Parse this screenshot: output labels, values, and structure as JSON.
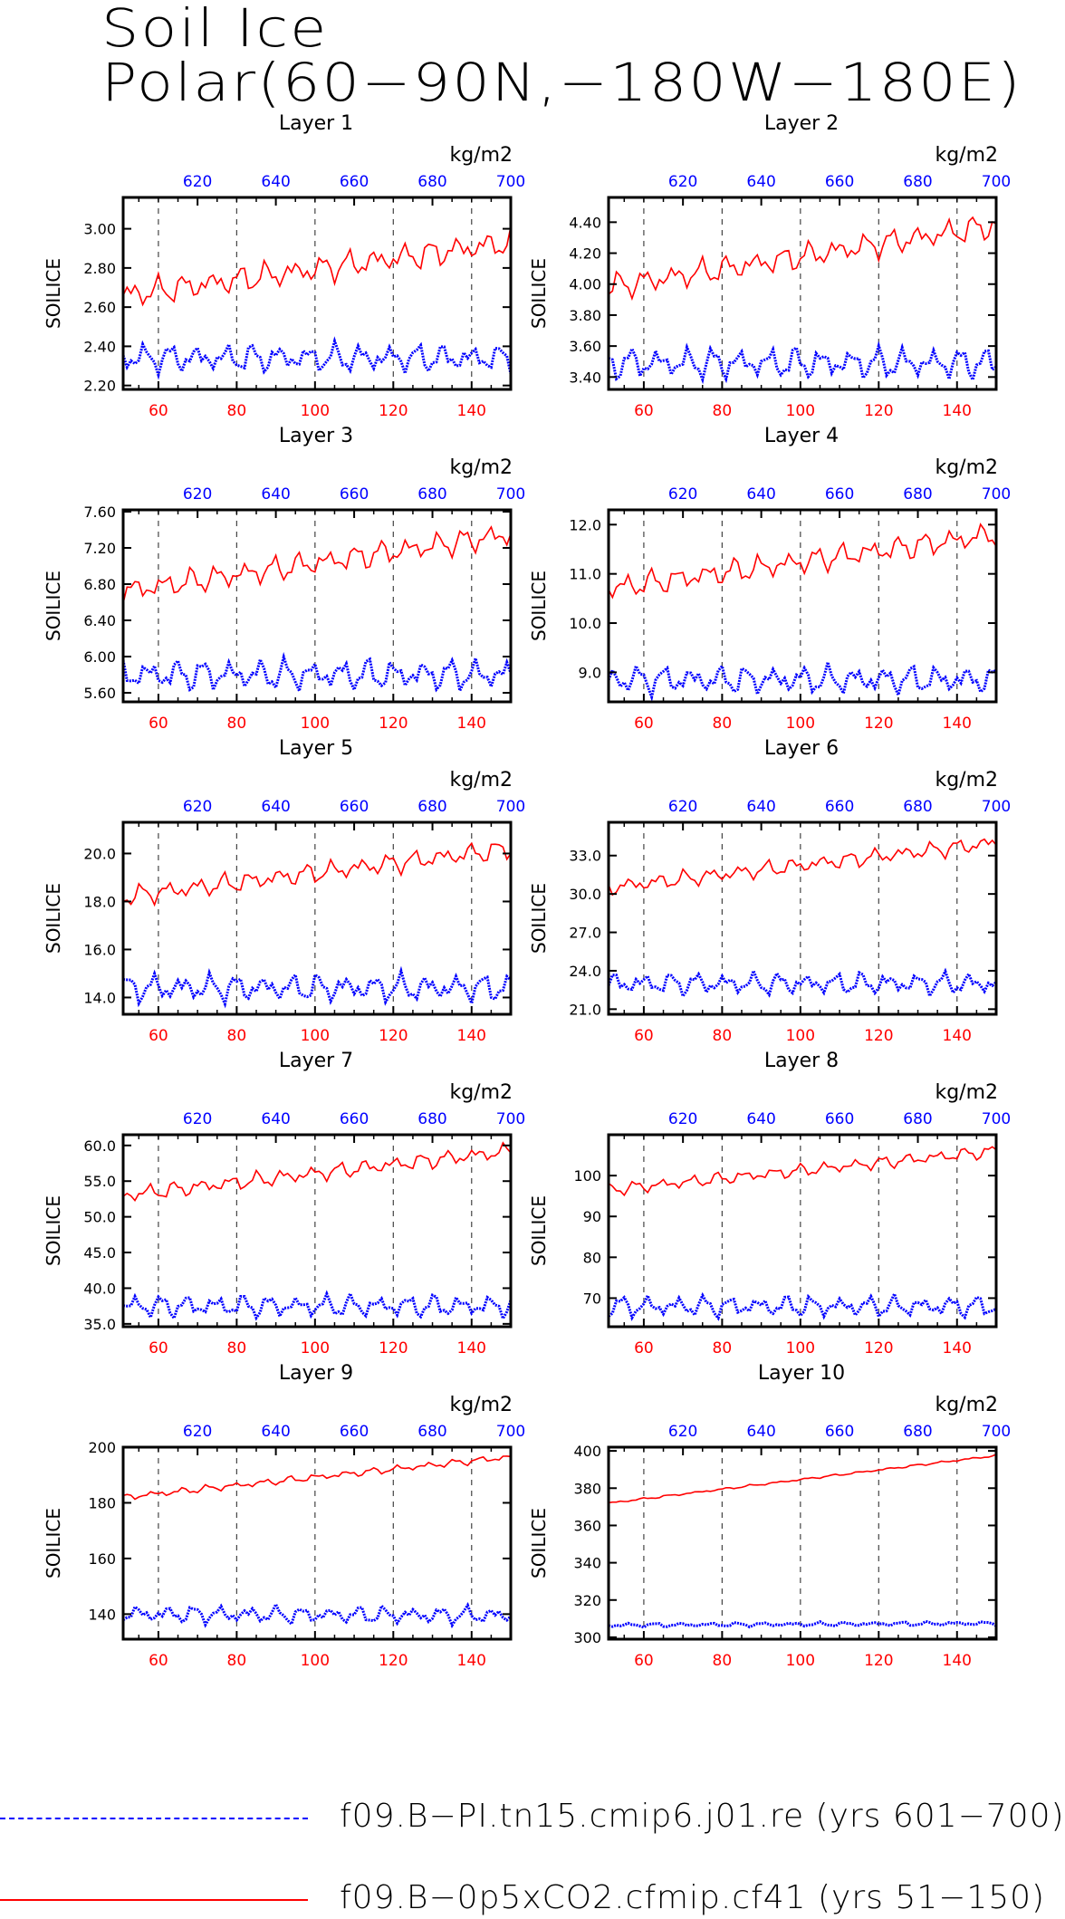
{
  "title": {
    "line1": "Soil Ice",
    "line2": "Polar(60−90N,−180W−180E)"
  },
  "colors": {
    "ctrl": "#0000ff",
    "exp": "#ff0000",
    "axis": "#000000",
    "grid": "#444444"
  },
  "legend": [
    {
      "label": "f09.B−PI.tn15.cmip6.j01.re (yrs 601−700)",
      "color": "#0000ff",
      "style": "dashed"
    },
    {
      "label": "f09.B−0p5xCO2.cfmip.cf41 (yrs 51−150)",
      "color": "#ff0000",
      "style": "solid"
    }
  ],
  "chart_data": [
    {
      "type": "line",
      "title": "Layer 1",
      "ylabel": "SOILICE",
      "top_axis_unit": "kg/m2",
      "x_bottom": {
        "ticks": [
          60,
          80,
          100,
          120,
          140
        ],
        "range": [
          51,
          150
        ],
        "color": "#ff0000"
      },
      "x_top": {
        "ticks": [
          620,
          640,
          660,
          680,
          700
        ],
        "range": [
          601,
          700
        ],
        "color": "#0000ff"
      },
      "ylim": [
        2.18,
        3.16
      ],
      "yticks": [
        2.2,
        2.4,
        2.6,
        2.8,
        3.0
      ],
      "ytick_labels": [
        "2.20",
        "2.40",
        "2.60",
        "2.80",
        "3.00"
      ],
      "series": [
        {
          "name": "f09.B−0p5xCO2.cfmip.cf41 (yrs 51−150)",
          "color": "#ff0000",
          "style": "solid",
          "start": 2.66,
          "end": 2.93,
          "amp": 0.05
        },
        {
          "name": "f09.B−PI.tn15.cmip6.j01.re (yrs 601−700)",
          "color": "#0000ff",
          "style": "dotted",
          "start": 2.34,
          "end": 2.34,
          "amp": 0.05
        }
      ]
    },
    {
      "type": "line",
      "title": "Layer 2",
      "ylabel": "SOILICE",
      "top_axis_unit": "kg/m2",
      "x_bottom": {
        "ticks": [
          60,
          80,
          100,
          120,
          140
        ],
        "range": [
          51,
          150
        ],
        "color": "#ff0000"
      },
      "x_top": {
        "ticks": [
          620,
          640,
          660,
          680,
          700
        ],
        "range": [
          601,
          700
        ],
        "color": "#0000ff"
      },
      "ylim": [
        3.32,
        4.56
      ],
      "yticks": [
        3.4,
        3.6,
        3.8,
        4.0,
        4.2,
        4.4
      ],
      "ytick_labels": [
        "3.40",
        "3.60",
        "3.80",
        "4.00",
        "4.20",
        "4.40"
      ],
      "series": [
        {
          "name": "f09.B−0p5xCO2.cfmip.cf41 (yrs 51−150)",
          "color": "#ff0000",
          "style": "solid",
          "start": 3.98,
          "end": 4.38,
          "amp": 0.06
        },
        {
          "name": "f09.B−PI.tn15.cmip6.j01.re (yrs 601−700)",
          "color": "#0000ff",
          "style": "dotted",
          "start": 3.49,
          "end": 3.49,
          "amp": 0.07
        }
      ]
    },
    {
      "type": "line",
      "title": "Layer 3",
      "ylabel": "SOILICE",
      "top_axis_unit": "kg/m2",
      "x_bottom": {
        "ticks": [
          60,
          80,
          100,
          120,
          140
        ],
        "range": [
          51,
          150
        ],
        "color": "#ff0000"
      },
      "x_top": {
        "ticks": [
          620,
          640,
          660,
          680,
          700
        ],
        "range": [
          601,
          700
        ],
        "color": "#0000ff"
      },
      "ylim": [
        5.5,
        7.62
      ],
      "yticks": [
        5.6,
        6.0,
        6.4,
        6.8,
        7.2,
        7.6
      ],
      "ytick_labels": [
        "5.60",
        "6.00",
        "6.40",
        "6.80",
        "7.20",
        "7.60"
      ],
      "series": [
        {
          "name": "f09.B−0p5xCO2.cfmip.cf41 (yrs 51−150)",
          "color": "#ff0000",
          "style": "solid",
          "start": 6.72,
          "end": 7.35,
          "amp": 0.1
        },
        {
          "name": "f09.B−PI.tn15.cmip6.j01.re (yrs 601−700)",
          "color": "#0000ff",
          "style": "dotted",
          "start": 5.8,
          "end": 5.8,
          "amp": 0.12
        }
      ]
    },
    {
      "type": "line",
      "title": "Layer 4",
      "ylabel": "SOILICE",
      "top_axis_unit": "kg/m2",
      "x_bottom": {
        "ticks": [
          60,
          80,
          100,
          120,
          140
        ],
        "range": [
          51,
          150
        ],
        "color": "#ff0000"
      },
      "x_top": {
        "ticks": [
          620,
          640,
          660,
          680,
          700
        ],
        "range": [
          601,
          700
        ],
        "color": "#0000ff"
      },
      "ylim": [
        8.4,
        12.3
      ],
      "yticks": [
        9.0,
        10.0,
        11.0,
        12.0
      ],
      "ytick_labels": [
        "9.0",
        "10.0",
        "11.0",
        "12.0"
      ],
      "series": [
        {
          "name": "f09.B−0p5xCO2.cfmip.cf41 (yrs 51−150)",
          "color": "#ff0000",
          "style": "solid",
          "start": 10.7,
          "end": 11.8,
          "amp": 0.18
        },
        {
          "name": "f09.B−PI.tn15.cmip6.j01.re (yrs 601−700)",
          "color": "#0000ff",
          "style": "dotted",
          "start": 8.85,
          "end": 8.85,
          "amp": 0.2
        }
      ]
    },
    {
      "type": "line",
      "title": "Layer 5",
      "ylabel": "SOILICE",
      "top_axis_unit": "kg/m2",
      "x_bottom": {
        "ticks": [
          60,
          80,
          100,
          120,
          140
        ],
        "range": [
          51,
          150
        ],
        "color": "#ff0000"
      },
      "x_top": {
        "ticks": [
          620,
          640,
          660,
          680,
          700
        ],
        "range": [
          601,
          700
        ],
        "color": "#0000ff"
      },
      "ylim": [
        13.3,
        21.3
      ],
      "yticks": [
        14.0,
        16.0,
        18.0,
        20.0
      ],
      "ytick_labels": [
        "14.0",
        "16.0",
        "18.0",
        "20.0"
      ],
      "series": [
        {
          "name": "f09.B−0p5xCO2.cfmip.cf41 (yrs 51−150)",
          "color": "#ff0000",
          "style": "solid",
          "start": 18.2,
          "end": 20.2,
          "amp": 0.3
        },
        {
          "name": "f09.B−PI.tn15.cmip6.j01.re (yrs 601−700)",
          "color": "#0000ff",
          "style": "dotted",
          "start": 14.4,
          "end": 14.4,
          "amp": 0.4
        }
      ]
    },
    {
      "type": "line",
      "title": "Layer 6",
      "ylabel": "SOILICE",
      "top_axis_unit": "kg/m2",
      "x_bottom": {
        "ticks": [
          60,
          80,
          100,
          120,
          140
        ],
        "range": [
          51,
          150
        ],
        "color": "#ff0000"
      },
      "x_top": {
        "ticks": [
          620,
          640,
          660,
          680,
          700
        ],
        "range": [
          601,
          700
        ],
        "color": "#0000ff"
      },
      "ylim": [
        20.6,
        35.6
      ],
      "yticks": [
        21.0,
        24.0,
        27.0,
        30.0,
        33.0
      ],
      "ytick_labels": [
        "21.0",
        "24.0",
        "27.0",
        "30.0",
        "33.0"
      ],
      "series": [
        {
          "name": "f09.B−0p5xCO2.cfmip.cf41 (yrs 51−150)",
          "color": "#ff0000",
          "style": "solid",
          "start": 30.5,
          "end": 34.0,
          "amp": 0.45
        },
        {
          "name": "f09.B−PI.tn15.cmip6.j01.re (yrs 601−700)",
          "color": "#0000ff",
          "style": "dotted",
          "start": 23.0,
          "end": 23.0,
          "amp": 0.6
        }
      ]
    },
    {
      "type": "line",
      "title": "Layer 7",
      "ylabel": "SOILICE",
      "top_axis_unit": "kg/m2",
      "x_bottom": {
        "ticks": [
          60,
          80,
          100,
          120,
          140
        ],
        "range": [
          51,
          150
        ],
        "color": "#ff0000"
      },
      "x_top": {
        "ticks": [
          620,
          640,
          660,
          680,
          700
        ],
        "range": [
          601,
          700
        ],
        "color": "#0000ff"
      },
      "ylim": [
        34.6,
        61.5
      ],
      "yticks": [
        35.0,
        40.0,
        45.0,
        50.0,
        55.0,
        60.0
      ],
      "ytick_labels": [
        "35.0",
        "40.0",
        "45.0",
        "50.0",
        "55.0",
        "60.0"
      ],
      "series": [
        {
          "name": "f09.B−0p5xCO2.cfmip.cf41 (yrs 51−150)",
          "color": "#ff0000",
          "style": "solid",
          "start": 53.0,
          "end": 59.2,
          "amp": 0.8
        },
        {
          "name": "f09.B−PI.tn15.cmip6.j01.re (yrs 601−700)",
          "color": "#0000ff",
          "style": "dotted",
          "start": 37.5,
          "end": 37.5,
          "amp": 1.1
        }
      ]
    },
    {
      "type": "line",
      "title": "Layer 8",
      "ylabel": "SOILICE",
      "top_axis_unit": "kg/m2",
      "x_bottom": {
        "ticks": [
          60,
          80,
          100,
          120,
          140
        ],
        "range": [
          51,
          150
        ],
        "color": "#ff0000"
      },
      "x_top": {
        "ticks": [
          620,
          640,
          660,
          680,
          700
        ],
        "range": [
          601,
          700
        ],
        "color": "#0000ff"
      },
      "ylim": [
        63,
        110
      ],
      "yticks": [
        70,
        80,
        90,
        100
      ],
      "ytick_labels": [
        "70",
        "80",
        "90",
        "100"
      ],
      "series": [
        {
          "name": "f09.B−0p5xCO2.cfmip.cf41 (yrs 51−150)",
          "color": "#ff0000",
          "style": "solid",
          "start": 96.5,
          "end": 106.0,
          "amp": 1.1
        },
        {
          "name": "f09.B−PI.tn15.cmip6.j01.re (yrs 601−700)",
          "color": "#0000ff",
          "style": "dotted",
          "start": 68.0,
          "end": 68.0,
          "amp": 1.8
        }
      ]
    },
    {
      "type": "line",
      "title": "Layer 9",
      "ylabel": "SOILICE",
      "top_axis_unit": "kg/m2",
      "x_bottom": {
        "ticks": [
          60,
          80,
          100,
          120,
          140
        ],
        "range": [
          51,
          150
        ],
        "color": "#ff0000"
      },
      "x_top": {
        "ticks": [
          620,
          640,
          660,
          680,
          700
        ],
        "range": [
          601,
          700
        ],
        "color": "#0000ff"
      },
      "ylim": [
        131,
        200
      ],
      "yticks": [
        140,
        160,
        180,
        200
      ],
      "ytick_labels": [
        "140",
        "160",
        "180",
        "200"
      ],
      "series": [
        {
          "name": "f09.B−0p5xCO2.cfmip.cf41 (yrs 51−150)",
          "color": "#ff0000",
          "style": "solid",
          "start": 182,
          "end": 196.5,
          "amp": 0.9
        },
        {
          "name": "f09.B−PI.tn15.cmip6.j01.re (yrs 601−700)",
          "color": "#0000ff",
          "style": "dotted",
          "start": 140,
          "end": 139.5,
          "amp": 2.2
        }
      ]
    },
    {
      "type": "line",
      "title": "Layer 10",
      "ylabel": "SOILICE",
      "top_axis_unit": "kg/m2",
      "x_bottom": {
        "ticks": [
          60,
          80,
          100,
          120,
          140
        ],
        "range": [
          51,
          150
        ],
        "color": "#ff0000"
      },
      "x_top": {
        "ticks": [
          620,
          640,
          660,
          680,
          700
        ],
        "range": [
          601,
          700
        ],
        "color": "#0000ff"
      },
      "ylim": [
        299,
        402
      ],
      "yticks": [
        300,
        320,
        340,
        360,
        380,
        400
      ],
      "ytick_labels": [
        "300",
        "320",
        "340",
        "360",
        "380",
        "400"
      ],
      "series": [
        {
          "name": "f09.B−0p5xCO2.cfmip.cf41 (yrs 51−150)",
          "color": "#ff0000",
          "style": "solid",
          "start": 372,
          "end": 397.5,
          "amp": 0.4
        },
        {
          "name": "f09.B−PI.tn15.cmip6.j01.re (yrs 601−700)",
          "color": "#0000ff",
          "style": "dotted",
          "start": 306.5,
          "end": 307.5,
          "amp": 0.8
        }
      ]
    }
  ]
}
